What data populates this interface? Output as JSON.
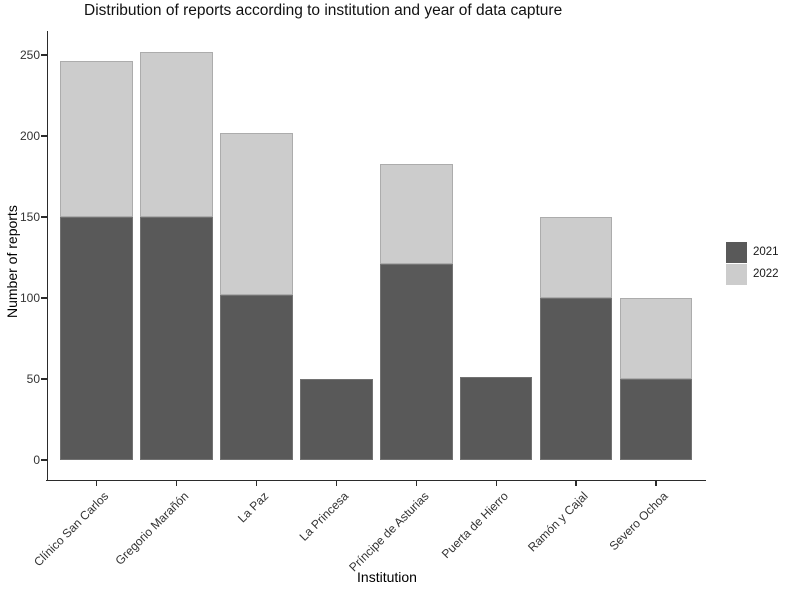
{
  "chart_data": {
    "type": "bar",
    "stacked": true,
    "title": "Distribution of reports according to institution and year of data capture",
    "xlabel": "Institution",
    "ylabel": "Number of reports",
    "categories": [
      "Clínico San Carlos",
      "Gregorio Marañón",
      "La Paz",
      "La Princesa",
      "Príncipe de Asturias",
      "Puerta de Hierro",
      "Ramón y Cajal",
      "Severo Ochoa"
    ],
    "series": [
      {
        "name": "2021",
        "color": "#595959",
        "values": [
          150,
          150,
          102,
          50,
          121,
          51,
          100,
          50
        ]
      },
      {
        "name": "2022",
        "color": "#cccccc",
        "values": [
          96,
          102,
          100,
          0,
          62,
          0,
          50,
          50
        ]
      }
    ],
    "totals": [
      246,
      252,
      202,
      50,
      183,
      51,
      150,
      100
    ],
    "yticks": [
      0,
      50,
      100,
      150,
      200,
      250
    ],
    "ylim": [
      0,
      250
    ],
    "grid": false,
    "legend_position": "right",
    "background_color": "#ffffff",
    "axis_color": "#2b2b2b"
  }
}
